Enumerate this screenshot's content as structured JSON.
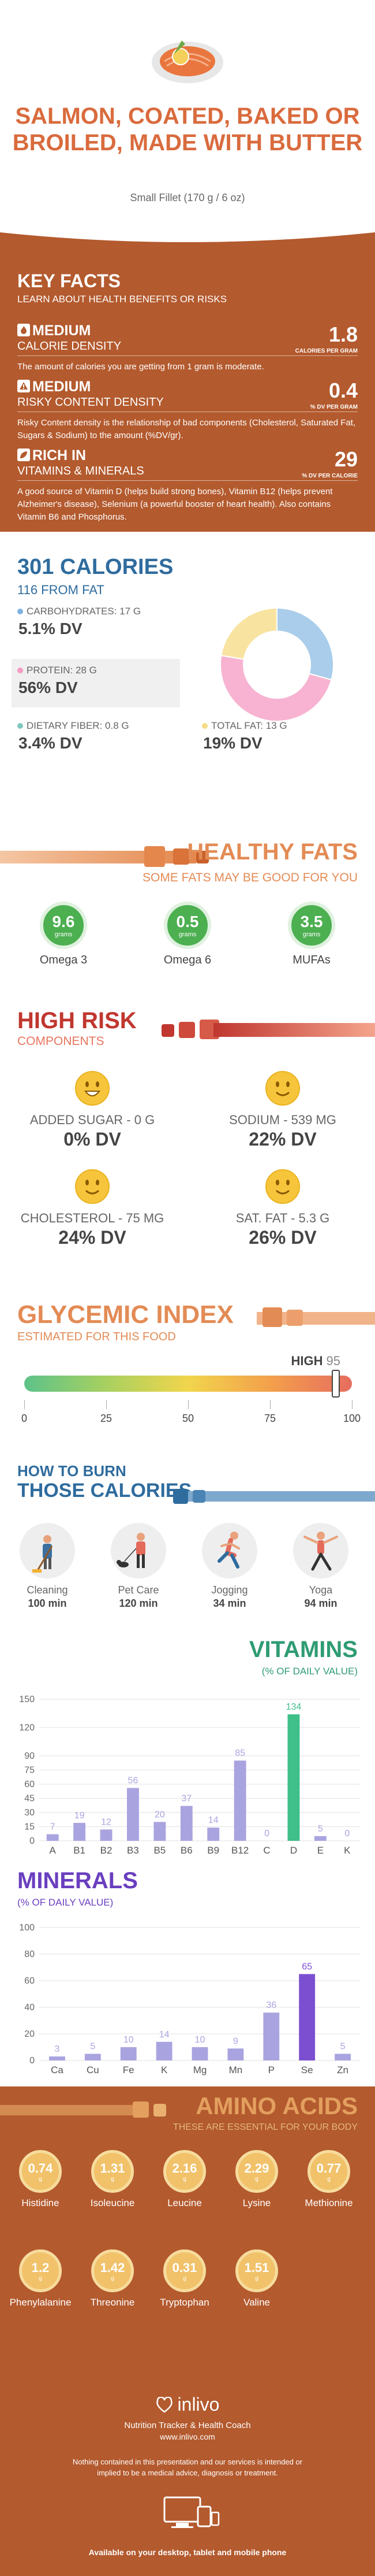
{
  "header": {
    "title": "SALMON, COATED, BAKED OR BROILED, MADE WITH BUTTER",
    "serving": "Small Fillet (170 g / 6 oz)"
  },
  "key_facts": {
    "title": "KEY FACTS",
    "subtitle": "LEARN ABOUT HEALTH BENEFITS OR RISKS",
    "facts": [
      {
        "level": "MEDIUM",
        "name": "CALORIE DENSITY",
        "value": "1.8",
        "unit": "CALORIES PER GRAM",
        "desc": "The amount of calories you are getting from 1 gram is moderate."
      },
      {
        "level": "MEDIUM",
        "name": "RISKY CONTENT DENSITY",
        "value": "0.4",
        "unit": "% DV PER GRAM",
        "desc": "Risky Content density is the relationship of bad components (Cholesterol, Saturated Fat, Sugars & Sodium) to the amount (%DV/gr)."
      },
      {
        "level": "RICH IN",
        "name": "VITAMINS & MINERALS",
        "value": "29",
        "unit": "% DV PER CALORIE",
        "desc": "A good source of Vitamin D (helps build strong bones), Vitamin B12 (helps prevent Alzheimer's disease), Selenium (a powerful booster of heart health). Also contains Vitamin B6 and Phosphorus."
      }
    ]
  },
  "calories": {
    "title": "301 CALORIES",
    "from_fat": "116 FROM FAT",
    "carbs": {
      "label": "CARBOHYDRATES: 17 g",
      "dv": "5.1% DV",
      "color": "#7fb3e0"
    },
    "protein": {
      "label": "PROTEIN: 28 g",
      "dv": "56% DV",
      "color": "#f49ac2"
    },
    "fiber": {
      "label": "DIETARY FIBER: 0.8 g",
      "dv": "3.4% DV",
      "color": "#7fc9c0"
    },
    "fat": {
      "label": "TOTAL FAT: 13 g",
      "dv": "19% DV",
      "color": "#f6dc87"
    },
    "donut": [
      {
        "name": "Carbohydrates",
        "value": 17,
        "color": "#a9cdea"
      },
      {
        "name": "Protein",
        "value": 28,
        "color": "#f7b3d1"
      },
      {
        "name": "Fat",
        "value": 13,
        "color": "#f8e3a0"
      }
    ]
  },
  "healthy_fats": {
    "title": "HEALTHY FATS",
    "subtitle": "SOME FATS MAY BE GOOD FOR YOU",
    "unit": "grams",
    "items": [
      {
        "value": "9.6",
        "name": "Omega 3"
      },
      {
        "value": "0.5",
        "name": "Omega 6"
      },
      {
        "value": "3.5",
        "name": "MUFAs"
      }
    ]
  },
  "high_risk": {
    "title": "HIGH RISK",
    "subtitle": "COMPONENTS",
    "items": [
      {
        "label": "ADDED SUGAR - 0 g",
        "dv": "0% DV",
        "face": "laugh"
      },
      {
        "label": "SODIUM - 539 mg",
        "dv": "22% DV",
        "face": "smile"
      },
      {
        "label": "CHOLESTEROL - 75 mg",
        "dv": "24% DV",
        "face": "smile"
      },
      {
        "label": "SAT. FAT - 5.3 g",
        "dv": "26% DV",
        "face": "smile"
      }
    ]
  },
  "glycemic": {
    "title": "GLYCEMIC INDEX",
    "subtitle": "ESTIMATED FOR THIS FOOD",
    "level": "HIGH",
    "value": 95,
    "value_label": "95",
    "ticks": [
      "0",
      "25",
      "50",
      "75",
      "100"
    ]
  },
  "burn": {
    "title1": "HOW TO BURN",
    "title2": "THOSE CALORIES",
    "items": [
      {
        "name": "Cleaning",
        "time": "100 min"
      },
      {
        "name": "Pet Care",
        "time": "120 min"
      },
      {
        "name": "Jogging",
        "time": "34 min"
      },
      {
        "name": "Yoga",
        "time": "94 min"
      }
    ]
  },
  "chart_data": [
    {
      "type": "bar",
      "title": "VITAMINS",
      "subtitle": "(% OF DAILY VALUE)",
      "categories": [
        "A",
        "B1",
        "B2",
        "B3",
        "B5",
        "B6",
        "B9",
        "B12",
        "C",
        "D",
        "E",
        "K"
      ],
      "values": [
        7,
        19,
        12,
        56,
        20,
        37,
        14,
        85,
        0,
        134,
        5,
        0
      ],
      "yticks": [
        "0",
        "15",
        "30",
        "45",
        "60",
        "75",
        "90",
        "120",
        "150"
      ],
      "ylim": [
        0,
        150
      ],
      "colors": {
        "bar": "#a9a4e0",
        "highlight": "#3fbf8a"
      }
    },
    {
      "type": "bar",
      "title": "MINERALS",
      "subtitle": "(% OF DAILY VALUE)",
      "categories": [
        "Ca",
        "Cu",
        "Fe",
        "K",
        "Mg",
        "Mn",
        "P",
        "Se",
        "Zn"
      ],
      "values": [
        3,
        5,
        10,
        14,
        10,
        9,
        36,
        65,
        5
      ],
      "yticks": [
        "0",
        "20",
        "40",
        "60",
        "80",
        "100"
      ],
      "ylim": [
        0,
        100
      ],
      "colors": {
        "bar": "#a9a4e0",
        "highlight": "#7c4fd1"
      }
    }
  ],
  "amino": {
    "title": "AMINO ACIDS",
    "subtitle": "THESE ARE ESSENTIAL FOR YOUR BODY",
    "unit": "g",
    "items": [
      {
        "value": "0.74",
        "name": "Histidine"
      },
      {
        "value": "1.31",
        "name": "Isoleucine"
      },
      {
        "value": "2.16",
        "name": "Leucine"
      },
      {
        "value": "2.29",
        "name": "Lysine"
      },
      {
        "value": "0.77",
        "name": "Methionine"
      },
      {
        "value": "1.2",
        "name": "Phenylalanine"
      },
      {
        "value": "1.42",
        "name": "Threonine"
      },
      {
        "value": "0.31",
        "name": "Tryptophan"
      },
      {
        "value": "1.51",
        "name": "Valine"
      }
    ]
  },
  "footer": {
    "brand": "inlivo",
    "tagline": "Nutrition Tracker & Health Coach",
    "url": "www.inlivo.com",
    "disclaimer": "Nothing contained in this presentation and our services is intended or implied to be a medical advice, diagnosis or treatment.",
    "available": "Available on your desktop, tablet and mobile phone"
  }
}
